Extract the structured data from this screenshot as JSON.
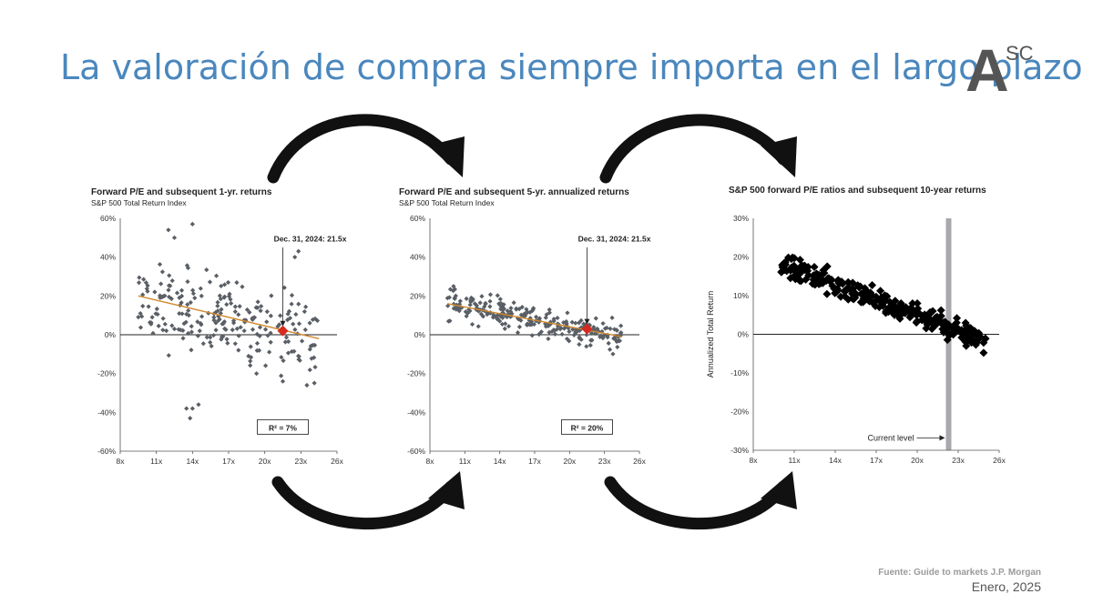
{
  "page": {
    "title": "La valoración de compra siempre importa en el largo plazo",
    "logo_main": "A",
    "logo_sup": "SC",
    "source": "Fuente: Guide to markets J.P. Morgan",
    "date": "Enero, 2025",
    "colors": {
      "title": "#4a87bd",
      "points": "#5a5f66",
      "trend": "#d08a2e",
      "highlight": "#d62a1e",
      "band": "#a7a9ac"
    }
  },
  "chart_data": [
    {
      "type": "scatter",
      "title": "Forward P/E and subsequent 1-yr. returns",
      "subtitle": "S&P 500 Total Return Index",
      "xlabel": "",
      "ylabel": "",
      "xlim": [
        8,
        26
      ],
      "ylim": [
        -60,
        60
      ],
      "x_ticks": [
        "8x",
        "11x",
        "14x",
        "17x",
        "20x",
        "23x",
        "26x"
      ],
      "y_ticks": [
        "60%",
        "40%",
        "20%",
        "0%",
        "-20%",
        "-40%",
        "-60%"
      ],
      "annotation": "Dec. 31, 2024: 21.5x",
      "current": {
        "x": 21.5,
        "y": 2
      },
      "trend": {
        "x1": 9.5,
        "y1": 20,
        "x2": 24.5,
        "y2": -2
      },
      "r2_label": "R² = 7%",
      "cloud": {
        "x_range": [
          9.5,
          24.5
        ],
        "y_spread": 18,
        "intercept": 20,
        "slope": -1.47
      },
      "extra_points": [
        [
          12,
          54
        ],
        [
          14,
          57
        ],
        [
          12.5,
          50
        ],
        [
          13.8,
          -43
        ],
        [
          14,
          -38
        ],
        [
          14.5,
          -36
        ],
        [
          13.5,
          -38
        ],
        [
          22.5,
          40
        ],
        [
          22.8,
          43
        ],
        [
          23.5,
          -26
        ],
        [
          21.5,
          -24
        ]
      ]
    },
    {
      "type": "scatter",
      "title": "Forward P/E and subsequent 5-yr. annualized returns",
      "subtitle": "S&P 500 Total Return Index",
      "xlabel": "",
      "ylabel": "",
      "xlim": [
        8,
        26
      ],
      "ylim": [
        -60,
        60
      ],
      "x_ticks": [
        "8x",
        "11x",
        "14x",
        "17x",
        "20x",
        "23x",
        "26x"
      ],
      "y_ticks": [
        "60%",
        "40%",
        "20%",
        "0%",
        "-20%",
        "-40%",
        "-60%"
      ],
      "annotation": "Dec. 31, 2024: 21.5x",
      "current": {
        "x": 21.5,
        "y": 3
      },
      "trend": {
        "x1": 9.5,
        "y1": 16,
        "x2": 24.5,
        "y2": -1
      },
      "r2_label": "R² = 20%",
      "cloud": {
        "x_range": [
          9.5,
          24.5
        ],
        "y_spread": 7,
        "intercept": 16,
        "slope": -1.13
      },
      "extra_points": []
    },
    {
      "type": "scatter",
      "title": "S&P 500 forward P/E ratios and subsequent 10-year returns",
      "subtitle": "",
      "xlabel": "",
      "ylabel": "Annualized Total Return",
      "xlim": [
        8,
        26
      ],
      "ylim": [
        -30,
        30
      ],
      "x_ticks": [
        "8x",
        "11x",
        "14x",
        "17x",
        "20x",
        "23x",
        "26x"
      ],
      "y_ticks": [
        "30%",
        "20%",
        "10%",
        "0%",
        "-10%",
        "-20%",
        "-30%"
      ],
      "band_x": 22.3,
      "band_label": "Current level",
      "cloud": {
        "x_range": [
          10,
          25
        ],
        "y_spread": 2.5,
        "intercept": 18.5,
        "slope": -1.35
      },
      "extra_points": []
    }
  ]
}
